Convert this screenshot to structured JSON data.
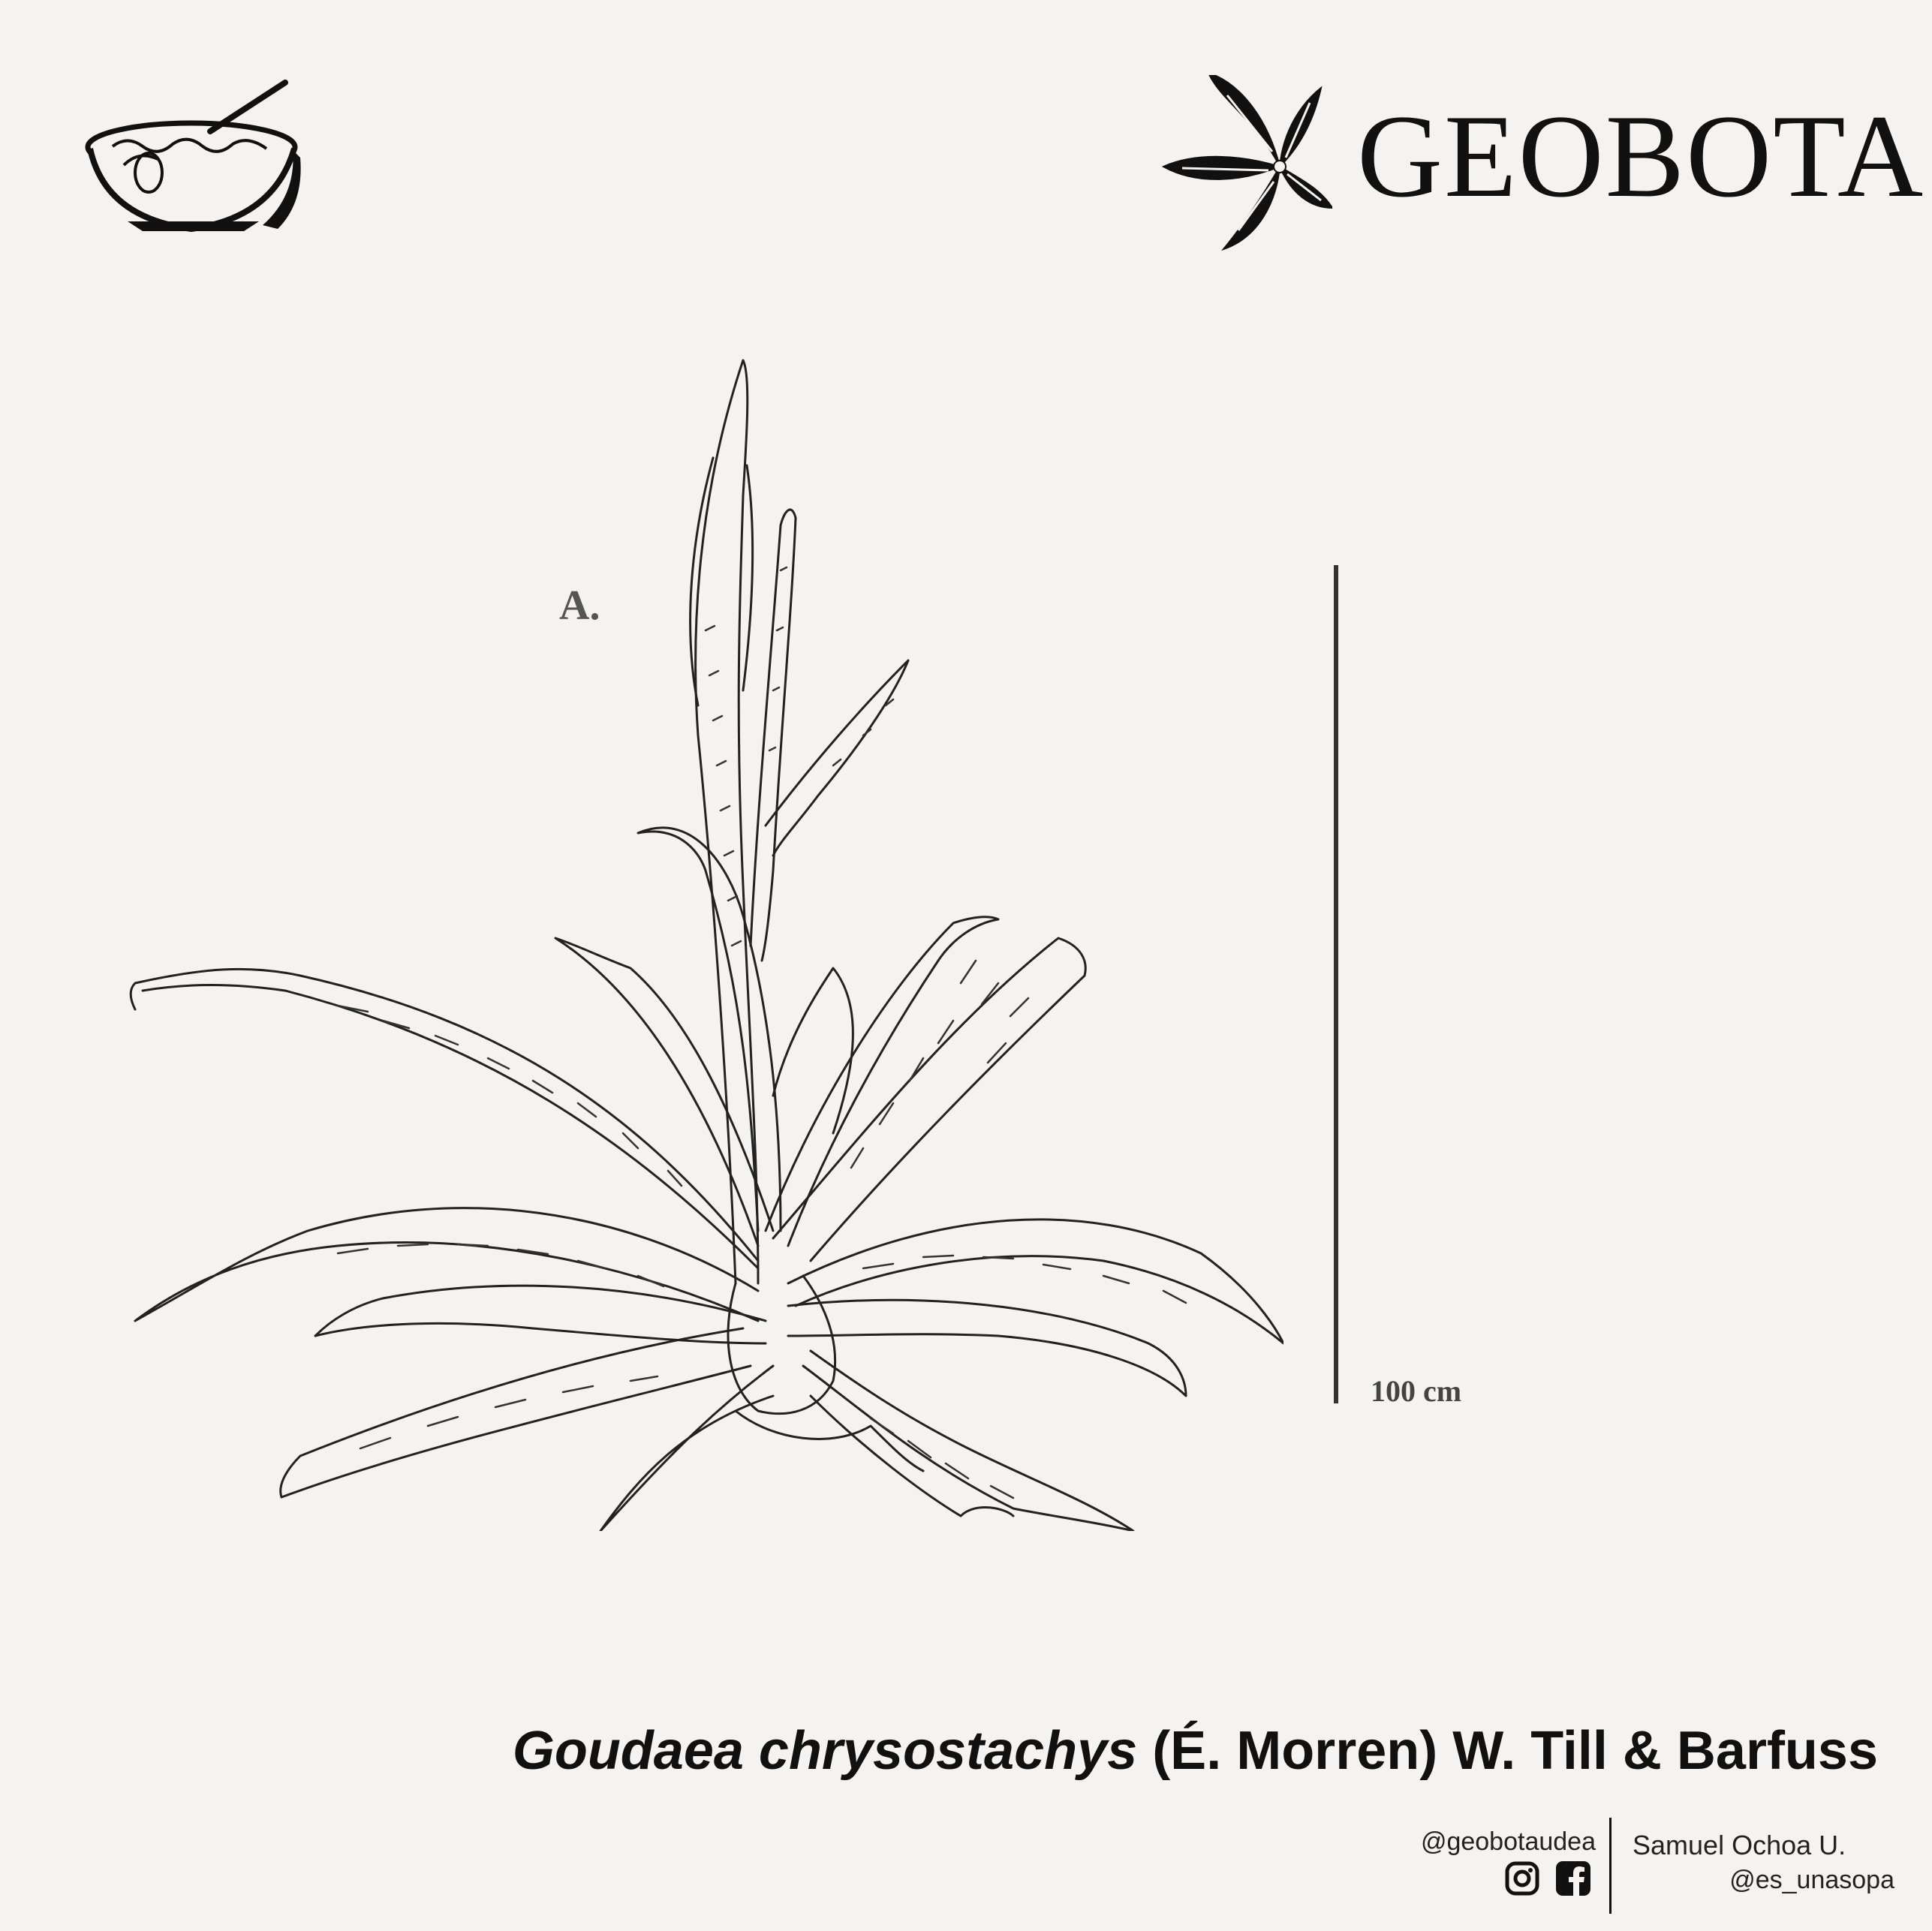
{
  "brand": {
    "name": "GEOBOTA"
  },
  "plate": {
    "letter": "A."
  },
  "scale": {
    "label": "100 cm"
  },
  "species": {
    "genus_species": "Goudaea chrysostachys",
    "authority": "(É. Morren) W. Till & Barfuss"
  },
  "credits": {
    "handle": "@geobotaudea",
    "author": "Samuel Ochoa U.",
    "author_handle": "@es_unasopa"
  },
  "icons": {
    "soup": "soup-bowl-icon",
    "leaf": "leaf-flower-icon",
    "instagram": "instagram-icon",
    "facebook": "facebook-icon"
  }
}
